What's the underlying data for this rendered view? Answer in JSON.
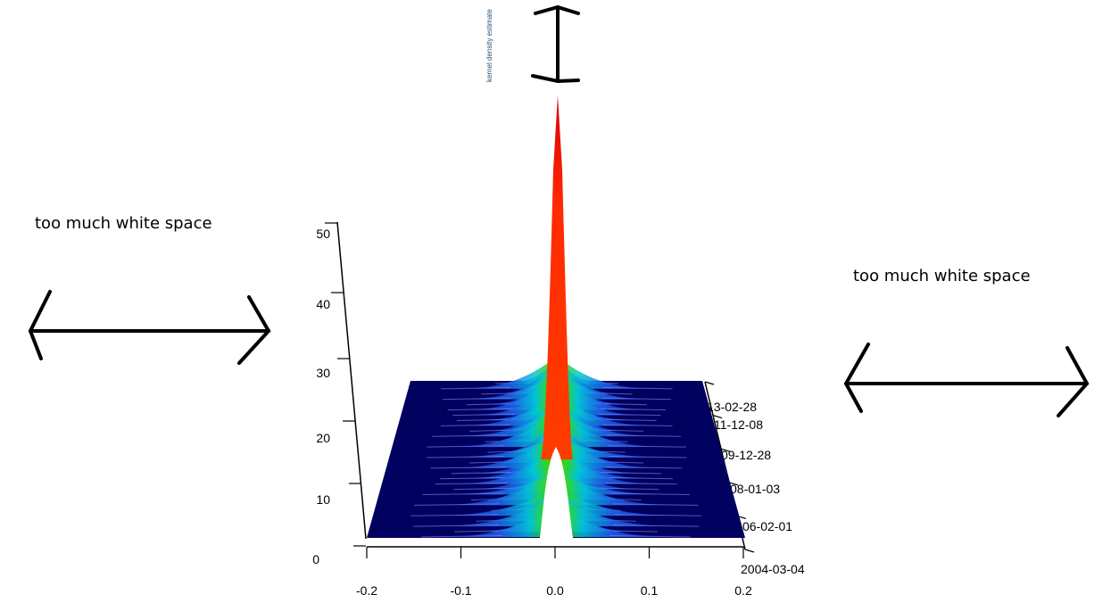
{
  "annotations": {
    "left_note": "too much white space",
    "right_note": "too much white space"
  },
  "chart_data": {
    "type": "surface-3d",
    "title": "",
    "zlabel": "kernel density estimate",
    "xlabel": "",
    "ylabel": "",
    "x_ticks": [
      "-0.2",
      "-0.1",
      "0.0",
      "0.1",
      "0.2"
    ],
    "z_ticks": [
      "0",
      "10",
      "20",
      "30",
      "40",
      "50"
    ],
    "y_ticks": [
      "2004-03-04",
      "06-02-01",
      "08-01-03",
      "09-12-28",
      "11-12-08",
      "13-02-28"
    ],
    "xlim": [
      -0.2,
      0.2
    ],
    "zlim": [
      0,
      50
    ],
    "ylim": [
      "2004-03-04",
      "2013-02-28"
    ],
    "colors": {
      "floor": "#00005e",
      "low": "#1f57e8",
      "mid": "#00c2c2",
      "green": "#35d000",
      "high": "#ff2200",
      "arrow": "#000000"
    }
  }
}
